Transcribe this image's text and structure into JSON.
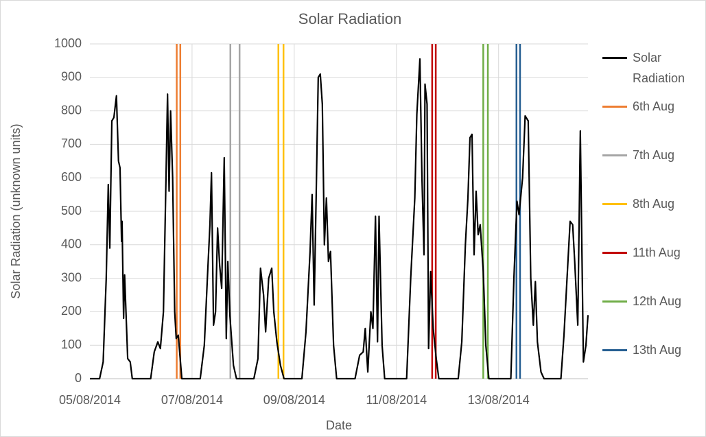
{
  "chart_data": {
    "type": "line",
    "title": "Solar Radiation",
    "x_label": "Date",
    "y_label": "Solar Radiation (unknown units)",
    "xlim": [
      0,
      9.75
    ],
    "ylim": [
      0,
      1000
    ],
    "xticks": [
      {
        "value": 0,
        "label": "05/08/2014"
      },
      {
        "value": 2,
        "label": "07/08/2014"
      },
      {
        "value": 4,
        "label": "09/08/2014"
      },
      {
        "value": 6,
        "label": "11/08/2014"
      },
      {
        "value": 8,
        "label": "13/08/2014"
      }
    ],
    "yticks": [
      0,
      100,
      200,
      300,
      400,
      500,
      600,
      700,
      800,
      900,
      1000
    ],
    "grid": true,
    "series": [
      {
        "name": "Solar Radiation",
        "color": "#000000",
        "x": [
          0,
          0.19,
          0.26,
          0.32,
          0.36,
          0.39,
          0.43,
          0.47,
          0.52,
          0.56,
          0.59,
          0.62,
          0.63,
          0.66,
          0.68,
          0.74,
          0.79,
          0.83,
          1.19,
          1.26,
          1.33,
          1.38,
          1.44,
          1.49,
          1.52,
          1.55,
          1.58,
          1.62,
          1.66,
          1.69,
          1.73,
          1.8,
          2.16,
          2.24,
          2.3,
          2.35,
          2.38,
          2.42,
          2.46,
          2.5,
          2.54,
          2.58,
          2.63,
          2.67,
          2.7,
          2.74,
          2.81,
          2.87,
          3.21,
          3.29,
          3.34,
          3.4,
          3.44,
          3.5,
          3.56,
          3.6,
          3.66,
          3.73,
          3.8,
          4.15,
          4.23,
          4.31,
          4.35,
          4.39,
          4.43,
          4.47,
          4.51,
          4.55,
          4.59,
          4.63,
          4.67,
          4.71,
          4.77,
          4.83,
          5.19,
          5.28,
          5.35,
          5.39,
          5.44,
          5.5,
          5.54,
          5.59,
          5.63,
          5.66,
          5.72,
          5.77,
          6.2,
          6.28,
          6.36,
          6.4,
          6.46,
          6.5,
          6.54,
          6.56,
          6.6,
          6.63,
          6.67,
          6.72,
          6.78,
          6.83,
          7.21,
          7.28,
          7.35,
          7.4,
          7.44,
          7.48,
          7.52,
          7.56,
          7.6,
          7.64,
          7.7,
          7.75,
          7.81,
          8.24,
          8.3,
          8.36,
          8.4,
          8.47,
          8.52,
          8.58,
          8.63,
          8.68,
          8.72,
          8.76,
          8.83,
          8.89,
          9.22,
          9.28,
          9.34,
          9.4,
          9.45,
          9.49,
          9.55,
          9.6,
          9.66,
          9.71,
          9.75
        ],
        "values": [
          0,
          0,
          50,
          300,
          580,
          390,
          770,
          780,
          845,
          650,
          630,
          410,
          470,
          180,
          310,
          60,
          50,
          0,
          0,
          80,
          110,
          90,
          200,
          600,
          850,
          560,
          800,
          600,
          200,
          120,
          130,
          0,
          0,
          100,
          300,
          460,
          615,
          160,
          200,
          450,
          340,
          270,
          660,
          120,
          350,
          190,
          40,
          0,
          0,
          60,
          330,
          250,
          140,
          300,
          330,
          200,
          110,
          40,
          0,
          0,
          140,
          380,
          550,
          220,
          550,
          900,
          910,
          820,
          400,
          540,
          350,
          380,
          100,
          0,
          0,
          70,
          80,
          150,
          20,
          200,
          150,
          485,
          110,
          485,
          100,
          0,
          0,
          300,
          540,
          790,
          955,
          600,
          370,
          880,
          820,
          90,
          320,
          150,
          60,
          0,
          0,
          110,
          400,
          540,
          720,
          730,
          370,
          560,
          430,
          460,
          320,
          100,
          0,
          0,
          300,
          530,
          490,
          600,
          785,
          770,
          300,
          160,
          290,
          110,
          20,
          0,
          0,
          130,
          300,
          470,
          460,
          350,
          160,
          740,
          50,
          100,
          190
        ]
      }
    ],
    "vlines": [
      {
        "name": "6th Aug",
        "color": "#ed7d31",
        "x": [
          1.7,
          1.77
        ]
      },
      {
        "name": "7th Aug",
        "color": "#a5a5a5",
        "x": [
          2.75,
          2.93
        ]
      },
      {
        "name": "8th Aug",
        "color": "#ffc000",
        "x": [
          3.69,
          3.79
        ]
      },
      {
        "name": "11th Aug",
        "color": "#c00000",
        "x": [
          6.7,
          6.77
        ]
      },
      {
        "name": "12th Aug",
        "color": "#70ad47",
        "x": [
          7.7,
          7.79
        ]
      },
      {
        "name": "13th Aug",
        "color": "#255e91",
        "x": [
          8.35,
          8.42
        ]
      }
    ]
  }
}
